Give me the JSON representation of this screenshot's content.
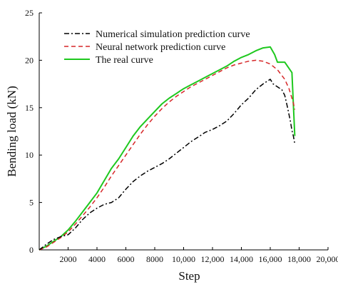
{
  "chart_data": {
    "type": "line",
    "xlabel": "Step",
    "ylabel": "Bending load (kN)",
    "xlim": [
      0,
      20000
    ],
    "ylim": [
      0,
      25
    ],
    "x_ticks": [
      2000,
      4000,
      6000,
      8000,
      10000,
      12000,
      14000,
      16000,
      18000,
      20000
    ],
    "x_tick_labels": [
      "2000",
      "4000",
      "6000",
      "8000",
      "10,000",
      "12,000",
      "14,000",
      "16,000",
      "18,000",
      "20,000"
    ],
    "y_ticks": [
      0,
      5,
      10,
      15,
      20,
      25
    ],
    "y_tick_labels": [
      "0",
      "5",
      "10",
      "15",
      "20",
      "25"
    ],
    "grid": false,
    "legend_position": "top-left",
    "series": [
      {
        "name": "Numerical simulation prediction curve",
        "color": "#000000",
        "style": "dash-dot",
        "x": [
          0,
          500,
          1000,
          1500,
          2000,
          2500,
          3000,
          3500,
          4000,
          4500,
          5000,
          5500,
          6000,
          6500,
          7000,
          7500,
          8000,
          8500,
          9000,
          9500,
          10000,
          10500,
          11000,
          11500,
          12000,
          12500,
          13000,
          13500,
          14000,
          14500,
          15000,
          15500,
          15800,
          16000,
          16200,
          16500,
          16800,
          17000,
          17200,
          17400,
          17500,
          17600,
          17700
        ],
        "y": [
          0,
          0.6,
          1.1,
          1.4,
          1.6,
          2.3,
          3.2,
          3.9,
          4.4,
          4.8,
          5.0,
          5.5,
          6.4,
          7.2,
          7.8,
          8.3,
          8.7,
          9.1,
          9.6,
          10.2,
          10.8,
          11.4,
          11.9,
          12.4,
          12.7,
          13.1,
          13.6,
          14.4,
          15.3,
          16.0,
          16.9,
          17.5,
          17.8,
          18.0,
          17.5,
          17.2,
          16.9,
          16.3,
          15.0,
          13.5,
          12.6,
          12.0,
          11.2
        ]
      },
      {
        "name": "Neural network prediction curve",
        "color": "#d62728",
        "style": "dashed",
        "x": [
          0,
          500,
          1000,
          1500,
          2000,
          2500,
          3000,
          3500,
          4000,
          4500,
          5000,
          5500,
          6000,
          6500,
          7000,
          7500,
          8000,
          8500,
          9000,
          9500,
          10000,
          10500,
          11000,
          11500,
          12000,
          12500,
          13000,
          13500,
          14000,
          14500,
          15000,
          15500,
          16000,
          16500,
          17000,
          17300,
          17600,
          17700
        ],
        "y": [
          0,
          0.3,
          0.8,
          1.3,
          1.9,
          2.7,
          3.6,
          4.5,
          5.5,
          6.6,
          7.8,
          8.9,
          10.0,
          11.1,
          12.2,
          13.2,
          14.1,
          14.9,
          15.6,
          16.2,
          16.7,
          17.2,
          17.6,
          18.0,
          18.4,
          18.8,
          19.2,
          19.5,
          19.7,
          19.9,
          20.0,
          19.9,
          19.6,
          19.0,
          18.0,
          17.0,
          15.5,
          14.8
        ]
      },
      {
        "name": "The real curve",
        "color": "#1ec81e",
        "style": "solid",
        "x": [
          0,
          500,
          1000,
          1500,
          2000,
          2500,
          3000,
          3500,
          4000,
          4500,
          5000,
          5500,
          6000,
          6500,
          7000,
          7500,
          8000,
          8500,
          9000,
          9500,
          10000,
          10500,
          11000,
          11500,
          12000,
          12500,
          13000,
          13500,
          14000,
          14500,
          15000,
          15500,
          16000,
          16300,
          16500,
          17000,
          17500,
          17700
        ],
        "y": [
          0,
          0.4,
          0.9,
          1.4,
          2.1,
          3.0,
          4.0,
          5.0,
          6.0,
          7.3,
          8.6,
          9.6,
          10.8,
          12.0,
          13.0,
          13.8,
          14.6,
          15.4,
          16.0,
          16.5,
          17.0,
          17.4,
          17.8,
          18.2,
          18.6,
          19.0,
          19.4,
          19.9,
          20.3,
          20.6,
          21.0,
          21.3,
          21.4,
          20.6,
          19.8,
          19.8,
          18.7,
          12.0
        ]
      }
    ]
  }
}
